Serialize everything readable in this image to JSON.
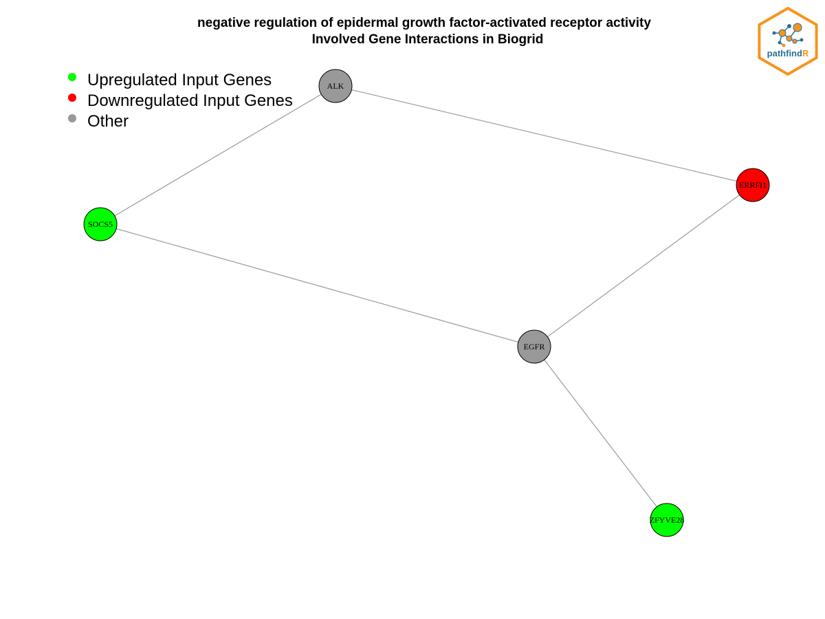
{
  "title": {
    "line1": "negative regulation of epidermal growth factor-activated receptor activity",
    "line2": "Involved Gene Interactions in Biogrid"
  },
  "legend": [
    {
      "label": "Upregulated Input Genes",
      "color": "#00ff00",
      "key": "up"
    },
    {
      "label": "Downregulated Input Genes",
      "color": "#ff0000",
      "key": "down"
    },
    {
      "label": "Other",
      "color": "#999999",
      "key": "other"
    }
  ],
  "colors": {
    "up": "#00ff00",
    "down": "#ff0000",
    "other": "#999999",
    "edge": "#a0a0a0",
    "logo_orange": "#f7941d",
    "logo_blue": "#2a6f97"
  },
  "graph": {
    "nodes": [
      {
        "id": "ALK",
        "label": "ALK",
        "type": "other"
      },
      {
        "id": "ERRFI1",
        "label": "ERRFI1",
        "type": "down"
      },
      {
        "id": "SOCS5",
        "label": "SOCS5",
        "type": "up"
      },
      {
        "id": "EGFR",
        "label": "EGFR",
        "type": "other"
      },
      {
        "id": "ZFYVE28",
        "label": "ZFYVE28",
        "type": "up"
      }
    ],
    "edges": [
      {
        "source": "ALK",
        "target": "ERRFI1"
      },
      {
        "source": "ALK",
        "target": "SOCS5"
      },
      {
        "source": "SOCS5",
        "target": "EGFR"
      },
      {
        "source": "ERRFI1",
        "target": "EGFR"
      },
      {
        "source": "EGFR",
        "target": "ZFYVE28"
      }
    ]
  },
  "logo": {
    "text_main": "pathfind",
    "text_accent": "R",
    "icon": "network-hexagon-icon"
  }
}
